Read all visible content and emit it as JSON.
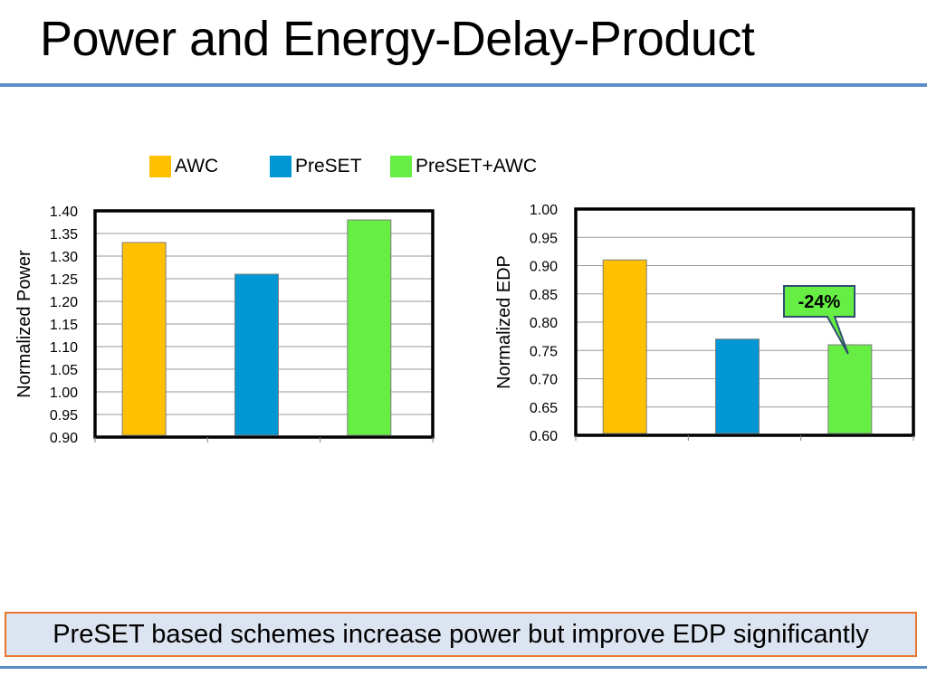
{
  "slide": {
    "title": "Power and Energy-Delay-Product",
    "summary": "PreSET based schemes increase power but improve EDP significantly"
  },
  "legend": [
    {
      "name": "AWC",
      "color": "#ffc000"
    },
    {
      "name": "PreSET",
      "color": "#0097d4"
    },
    {
      "name": "PreSET+AWC",
      "color": "#66ee44"
    }
  ],
  "chart_data": [
    {
      "type": "bar",
      "categories": [
        "AWC",
        "PreSET",
        "PreSET+AWC"
      ],
      "values": [
        1.33,
        1.26,
        1.38
      ],
      "ylabel": "Normalized Power",
      "ylim": [
        0.9,
        1.4
      ],
      "yticks": [
        "0.90",
        "0.95",
        "1.00",
        "1.05",
        "1.10",
        "1.15",
        "1.20",
        "1.25",
        "1.30",
        "1.35",
        "1.40"
      ],
      "grid": true
    },
    {
      "type": "bar",
      "categories": [
        "AWC",
        "PreSET",
        "PreSET+AWC"
      ],
      "values": [
        0.91,
        0.77,
        0.76
      ],
      "ylabel": "Normalized EDP",
      "ylim": [
        0.6,
        1.0
      ],
      "yticks": [
        "0.60",
        "0.65",
        "0.70",
        "0.75",
        "0.80",
        "0.85",
        "0.90",
        "0.95",
        "1.00"
      ],
      "grid": true,
      "annotation": {
        "text": "-24%",
        "target_index": 2
      }
    }
  ]
}
